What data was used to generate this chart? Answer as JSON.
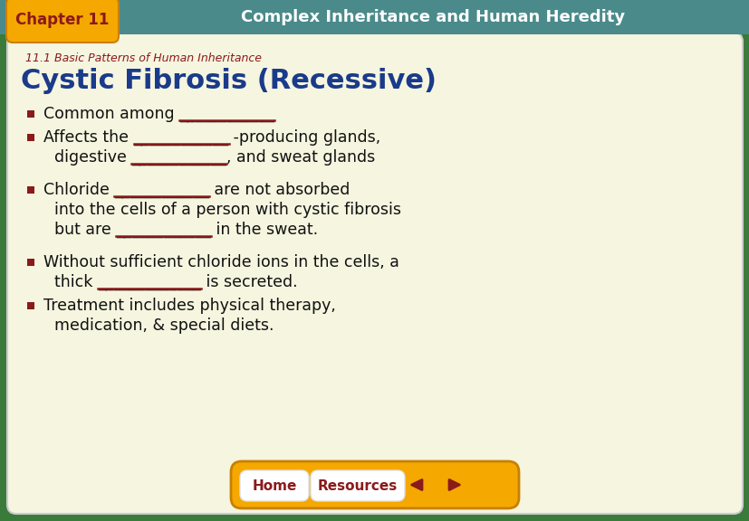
{
  "bg_outer": "#3a7a3a",
  "bg_header": "#4a8a8a",
  "bg_chapter_tab": "#f5a800",
  "bg_content": "#f5f5e0",
  "chapter_text_color": "#8b1a1a",
  "header_text_color": "#ffffff",
  "subtitle_color": "#8b1a1a",
  "title_color": "#1a3a8a",
  "bullet_color": "#8b1a1a",
  "body_color": "#111111",
  "underline_color": "#8b1a1a",
  "nav_bg": "#f5a800",
  "nav_btn_color": "#8b1a1a",
  "chapter_label": "Chapter 11",
  "header_label": "Complex Inheritance and Human Heredity",
  "subtitle": "11.1 Basic Patterns of Human Inheritance",
  "main_title": "Cystic Fibrosis (Recessive)",
  "nav_home": "Home",
  "nav_resources": "Resources",
  "line1_prefix": "■ Common among ",
  "line1_blank": "____________",
  "line2_prefix": "■ Affects the ",
  "line2_blank": "____________",
  "line2_suffix": " -producing glands,",
  "line3_prefix": "    digestive ",
  "line3_blank": "____________",
  "line3_suffix": ", and sweat glands",
  "line4_prefix": "■ Chloride ",
  "line4_blank": "____________",
  "line4_suffix": " are not absorbed",
  "line5": "    into the cells of a person with cystic fibrosis",
  "line6_prefix": "    but are ",
  "line6_blank": "____________",
  "line6_suffix": " in the sweat.",
  "line7_prefix": "■ Without sufficient chloride ions in the cells, a",
  "line8_prefix": "    thick ",
  "line8_blank": "_____________",
  "line8_suffix": " is secreted.",
  "line9": "■ Treatment includes physical therapy,",
  "line10": "    medication, & special diets."
}
